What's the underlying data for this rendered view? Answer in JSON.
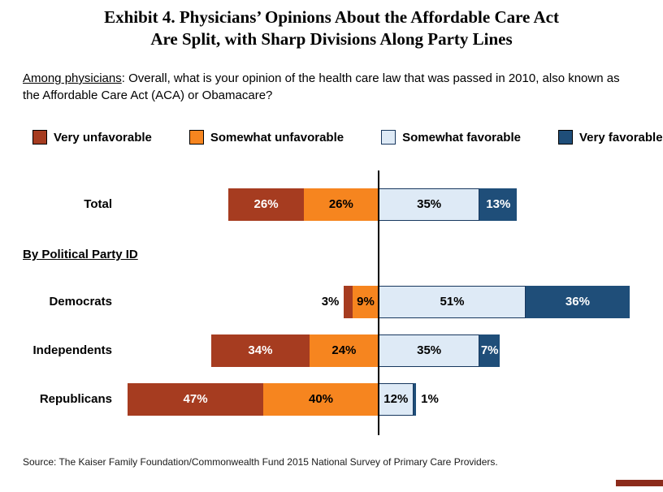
{
  "title": {
    "line1": "Exhibit 4. Physicians’ Opinions About the Affordable Care Act",
    "line2": "Are Split, with Sharp Divisions Along Party Lines"
  },
  "question": {
    "underlined": "Among physicians",
    "rest": ": Overall, what is your opinion of the health care law that was passed in 2010, also known as the Affordable Care Act (ACA) or Obamacare?"
  },
  "group_label": "By Political Party ID",
  "source": "Source: The Kaiser Family Foundation/Commonwealth Fund 2015 National Survey of Primary Care Providers.",
  "chart_data": {
    "type": "bar",
    "subtype": "diverging-stacked-horizontal",
    "title": "Exhibit 4. Physicians’ Opinions About the Affordable Care Act Are Split, with Sharp Divisions Along Party Lines",
    "xlim": [
      -87,
      87
    ],
    "legend_position": "top",
    "legend": [
      {
        "label": "Very unfavorable",
        "color": "#A63C20",
        "text_color": "#FFFFFF"
      },
      {
        "label": "Somewhat unfavorable",
        "color": "#F6851F",
        "text_color": "#000000"
      },
      {
        "label": "Somewhat favorable",
        "color": "#DEEAF6",
        "text_color": "#000000",
        "border": "#17375E"
      },
      {
        "label": "Very favorable",
        "color": "#1F4E79",
        "text_color": "#FFFFFF"
      }
    ],
    "rows": [
      {
        "category": "Total",
        "values": [
          26,
          26,
          35,
          13
        ],
        "labels": [
          "26%",
          "26%",
          "35%",
          "13%"
        ],
        "outside": [
          false,
          false,
          false,
          false
        ]
      },
      {
        "category": "Democrats",
        "values": [
          3,
          9,
          51,
          36
        ],
        "labels": [
          "3%",
          "9%",
          "51%",
          "36%"
        ],
        "outside": [
          true,
          false,
          false,
          false
        ]
      },
      {
        "category": "Independents",
        "values": [
          34,
          24,
          35,
          7
        ],
        "labels": [
          "34%",
          "24%",
          "35%",
          "7%"
        ],
        "outside": [
          false,
          false,
          false,
          false
        ]
      },
      {
        "category": "Republicans",
        "values": [
          47,
          40,
          12,
          1
        ],
        "labels": [
          "47%",
          "40%",
          "12%",
          "1%"
        ],
        "outside": [
          false,
          false,
          false,
          true
        ]
      }
    ]
  }
}
